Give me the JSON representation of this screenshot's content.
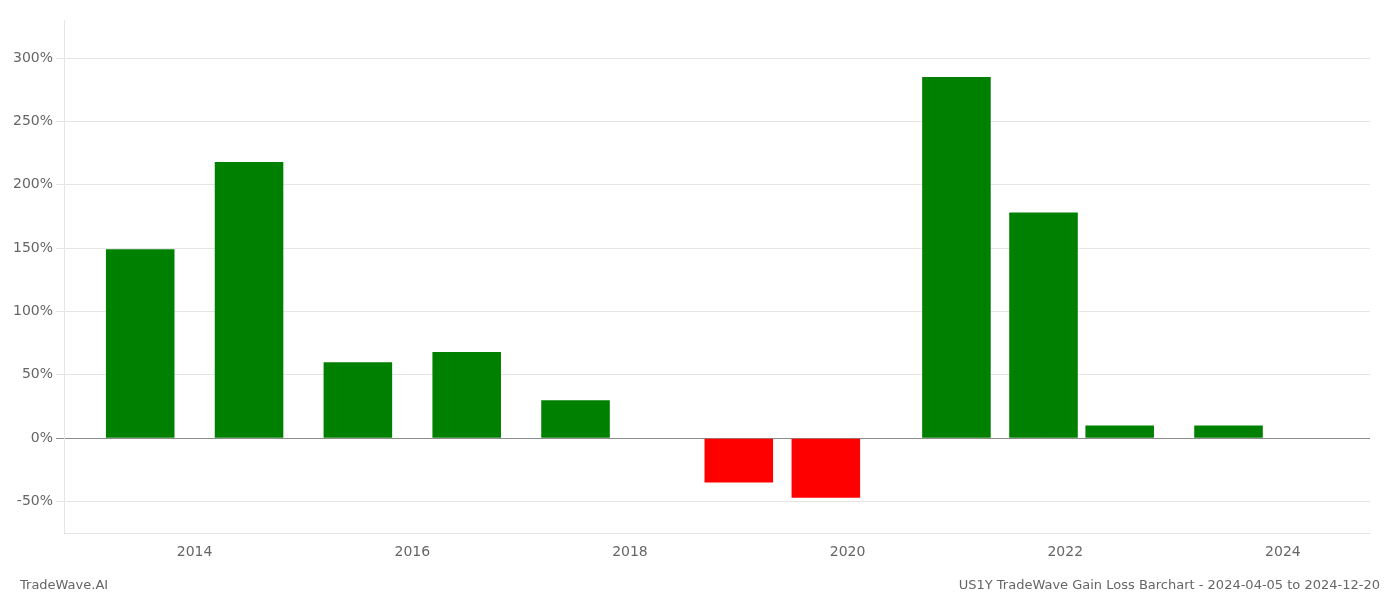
{
  "chart_data": {
    "type": "bar",
    "annotations": [
      "TradeWave.AI",
      "US1Y TradeWave Gain Loss Barchart - 2024-04-05 to 2024-12-20"
    ],
    "x": [
      2013.5,
      2014.5,
      2015.5,
      2016.5,
      2017.5,
      2019.0,
      2019.8,
      2021.0,
      2021.8,
      2022.5,
      2023.5
    ],
    "values": [
      149,
      218,
      60,
      68,
      30,
      -35,
      -47,
      285,
      178,
      10,
      10
    ],
    "colors": [
      "#008000",
      "#008000",
      "#008000",
      "#008000",
      "#008000",
      "#ff0000",
      "#ff0000",
      "#008000",
      "#008000",
      "#008000",
      "#008000"
    ],
    "xlim": [
      2012.8,
      2024.8
    ],
    "xticks": [
      2014,
      2016,
      2018,
      2020,
      2022,
      2024
    ],
    "ylim": [
      -75,
      330
    ],
    "yticks": [
      {
        "value": -50,
        "label": "-50%"
      },
      {
        "value": 0,
        "label": "0%"
      },
      {
        "value": 50,
        "label": "50%"
      },
      {
        "value": 100,
        "label": "100%"
      },
      {
        "value": 150,
        "label": "150%"
      },
      {
        "value": 200,
        "label": "200%"
      },
      {
        "value": 250,
        "label": "250%"
      },
      {
        "value": 300,
        "label": "300%"
      }
    ],
    "grid": "y"
  }
}
